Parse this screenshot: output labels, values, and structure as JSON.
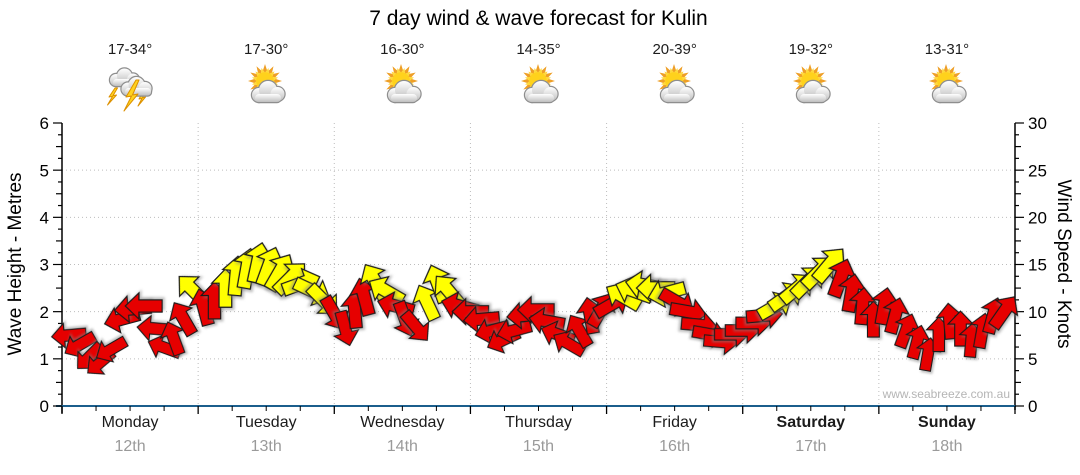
{
  "title": "7 day wind & wave forecast for Kulin",
  "watermark": "www.seabreeze.com.au",
  "days": [
    {
      "name": "Monday",
      "date": "12th",
      "temps": "17-34°",
      "icon": "thunderstorm",
      "weekend": false
    },
    {
      "name": "Tuesday",
      "date": "13th",
      "temps": "17-30°",
      "icon": "partly-cloudy",
      "weekend": false
    },
    {
      "name": "Wednesday",
      "date": "14th",
      "temps": "16-30°",
      "icon": "partly-cloudy",
      "weekend": false
    },
    {
      "name": "Thursday",
      "date": "15th",
      "temps": "14-35°",
      "icon": "partly-cloudy",
      "weekend": false
    },
    {
      "name": "Friday",
      "date": "16th",
      "temps": "20-39°",
      "icon": "partly-cloudy",
      "weekend": false
    },
    {
      "name": "Saturday",
      "date": "17th",
      "temps": "19-32°",
      "icon": "partly-cloudy",
      "weekend": true
    },
    {
      "name": "Sunday",
      "date": "18th",
      "temps": "13-31°",
      "icon": "partly-cloudy",
      "weekend": true
    }
  ],
  "colors": {
    "arrow_red": "#e60000",
    "arrow_yellow": "#ffff00",
    "arrow_outline": "#1a1a1a",
    "x_axis_line": "#1b5e8c",
    "y_axis_line": "#000000",
    "grid_line": "#bdbdbd",
    "day_text": "#1b1b1b",
    "date_text": "#9a9a9a",
    "watermark_text": "#b5b5b5"
  },
  "chart_data": {
    "type": "scatter",
    "marker": "wind-direction-arrow",
    "title": "7 day wind & wave forecast for Kulin",
    "categories": [
      "Monday 12th",
      "Tuesday 13th",
      "Wednesday 14th",
      "Thursday 15th",
      "Friday 16th",
      "Saturday 17th",
      "Sunday 18th"
    ],
    "y_left": {
      "label": "Wave Height - Metres",
      "range": [
        0,
        6
      ],
      "ticks": [
        0,
        1,
        2,
        3,
        4,
        5,
        6
      ]
    },
    "y_right": {
      "label": "Wind Speed - Knots",
      "range": [
        0,
        30
      ],
      "ticks": [
        0,
        5,
        10,
        15,
        20,
        25,
        30
      ]
    },
    "grid": "dotted",
    "legend": "none",
    "arrow_format": [
      "days_from_start",
      "wind_speed_knots",
      "direction_deg_pointing",
      "color"
    ],
    "arrows": [
      [
        0.05,
        7.5,
        265,
        "r"
      ],
      [
        0.13,
        6.5,
        240,
        "r"
      ],
      [
        0.2,
        5.2,
        225,
        "r"
      ],
      [
        0.28,
        4.6,
        230,
        "r"
      ],
      [
        0.36,
        6.0,
        240,
        "r"
      ],
      [
        0.44,
        9.2,
        255,
        "r"
      ],
      [
        0.52,
        10.3,
        265,
        "r"
      ],
      [
        0.6,
        10.6,
        270,
        "r"
      ],
      [
        0.68,
        8.2,
        275,
        "r"
      ],
      [
        0.75,
        6.2,
        290,
        "r"
      ],
      [
        0.82,
        7.2,
        340,
        "r"
      ],
      [
        0.89,
        9.3,
        330,
        "r"
      ],
      [
        0.96,
        12.3,
        315,
        "y"
      ],
      [
        1.04,
        10.5,
        345,
        "r"
      ],
      [
        1.12,
        11.2,
        0,
        "r"
      ],
      [
        1.2,
        12.5,
        0,
        "y"
      ],
      [
        1.28,
        13.8,
        5,
        "y"
      ],
      [
        1.36,
        14.6,
        10,
        "y"
      ],
      [
        1.44,
        15.2,
        12,
        "y"
      ],
      [
        1.52,
        14.8,
        20,
        "y"
      ],
      [
        1.6,
        14.2,
        30,
        "y"
      ],
      [
        1.68,
        13.6,
        45,
        "y"
      ],
      [
        1.76,
        13.0,
        70,
        "y"
      ],
      [
        1.84,
        12.2,
        115,
        "y"
      ],
      [
        1.92,
        11.2,
        135,
        "y"
      ],
      [
        2.0,
        9.8,
        150,
        "r"
      ],
      [
        2.08,
        8.2,
        165,
        "r"
      ],
      [
        2.15,
        10.2,
        355,
        "r"
      ],
      [
        2.22,
        11.6,
        345,
        "r"
      ],
      [
        2.3,
        13.2,
        330,
        "y"
      ],
      [
        2.38,
        12.2,
        300,
        "y"
      ],
      [
        2.45,
        10.6,
        285,
        "r"
      ],
      [
        2.52,
        9.2,
        160,
        "r"
      ],
      [
        2.6,
        8.4,
        140,
        "r"
      ],
      [
        2.68,
        11.0,
        335,
        "y"
      ],
      [
        2.76,
        13.0,
        340,
        "y"
      ],
      [
        2.84,
        12.2,
        320,
        "y"
      ],
      [
        2.92,
        10.6,
        285,
        "r"
      ],
      [
        3.0,
        10.0,
        270,
        "r"
      ],
      [
        3.08,
        9.2,
        265,
        "r"
      ],
      [
        3.16,
        8.0,
        255,
        "r"
      ],
      [
        3.24,
        7.0,
        245,
        "r"
      ],
      [
        3.32,
        8.0,
        255,
        "r"
      ],
      [
        3.4,
        9.6,
        265,
        "r"
      ],
      [
        3.48,
        10.2,
        270,
        "r"
      ],
      [
        3.56,
        9.0,
        280,
        "r"
      ],
      [
        3.64,
        7.6,
        290,
        "r"
      ],
      [
        3.72,
        6.6,
        300,
        "r"
      ],
      [
        3.8,
        8.0,
        330,
        "r"
      ],
      [
        3.88,
        9.6,
        350,
        "r"
      ],
      [
        3.96,
        10.2,
        30,
        "r"
      ],
      [
        4.04,
        10.8,
        60,
        "r"
      ],
      [
        4.12,
        11.6,
        300,
        "y"
      ],
      [
        4.2,
        12.2,
        290,
        "y"
      ],
      [
        4.28,
        12.8,
        280,
        "y"
      ],
      [
        4.36,
        12.5,
        270,
        "y"
      ],
      [
        4.44,
        12.0,
        255,
        "y"
      ],
      [
        4.52,
        11.0,
        120,
        "r"
      ],
      [
        4.6,
        10.0,
        100,
        "r"
      ],
      [
        4.68,
        8.6,
        95,
        "r"
      ],
      [
        4.76,
        7.6,
        100,
        "r"
      ],
      [
        4.84,
        6.8,
        95,
        "r"
      ],
      [
        4.92,
        7.6,
        90,
        "r"
      ],
      [
        5.0,
        8.0,
        90,
        "r"
      ],
      [
        5.08,
        8.8,
        90,
        "r"
      ],
      [
        5.16,
        9.6,
        85,
        "r"
      ],
      [
        5.24,
        10.6,
        60,
        "y"
      ],
      [
        5.32,
        11.6,
        55,
        "y"
      ],
      [
        5.4,
        12.5,
        50,
        "y"
      ],
      [
        5.48,
        13.2,
        45,
        "y"
      ],
      [
        5.56,
        14.2,
        45,
        "y"
      ],
      [
        5.64,
        15.0,
        40,
        "y"
      ],
      [
        5.72,
        13.6,
        20,
        "r"
      ],
      [
        5.8,
        12.0,
        10,
        "r"
      ],
      [
        5.88,
        10.6,
        5,
        "r"
      ],
      [
        5.96,
        9.2,
        0,
        "r"
      ],
      [
        6.04,
        10.6,
        10,
        "r"
      ],
      [
        6.12,
        9.6,
        15,
        "r"
      ],
      [
        6.2,
        8.0,
        20,
        "r"
      ],
      [
        6.28,
        6.8,
        15,
        "r"
      ],
      [
        6.36,
        5.5,
        10,
        "r"
      ],
      [
        6.44,
        7.6,
        0,
        "r"
      ],
      [
        6.52,
        9.0,
        355,
        "r"
      ],
      [
        6.6,
        8.2,
        0,
        "r"
      ],
      [
        6.68,
        7.0,
        5,
        "r"
      ],
      [
        6.76,
        8.0,
        10,
        "r"
      ],
      [
        6.84,
        9.6,
        15,
        "r"
      ],
      [
        6.92,
        10.0,
        35,
        "r"
      ]
    ]
  }
}
